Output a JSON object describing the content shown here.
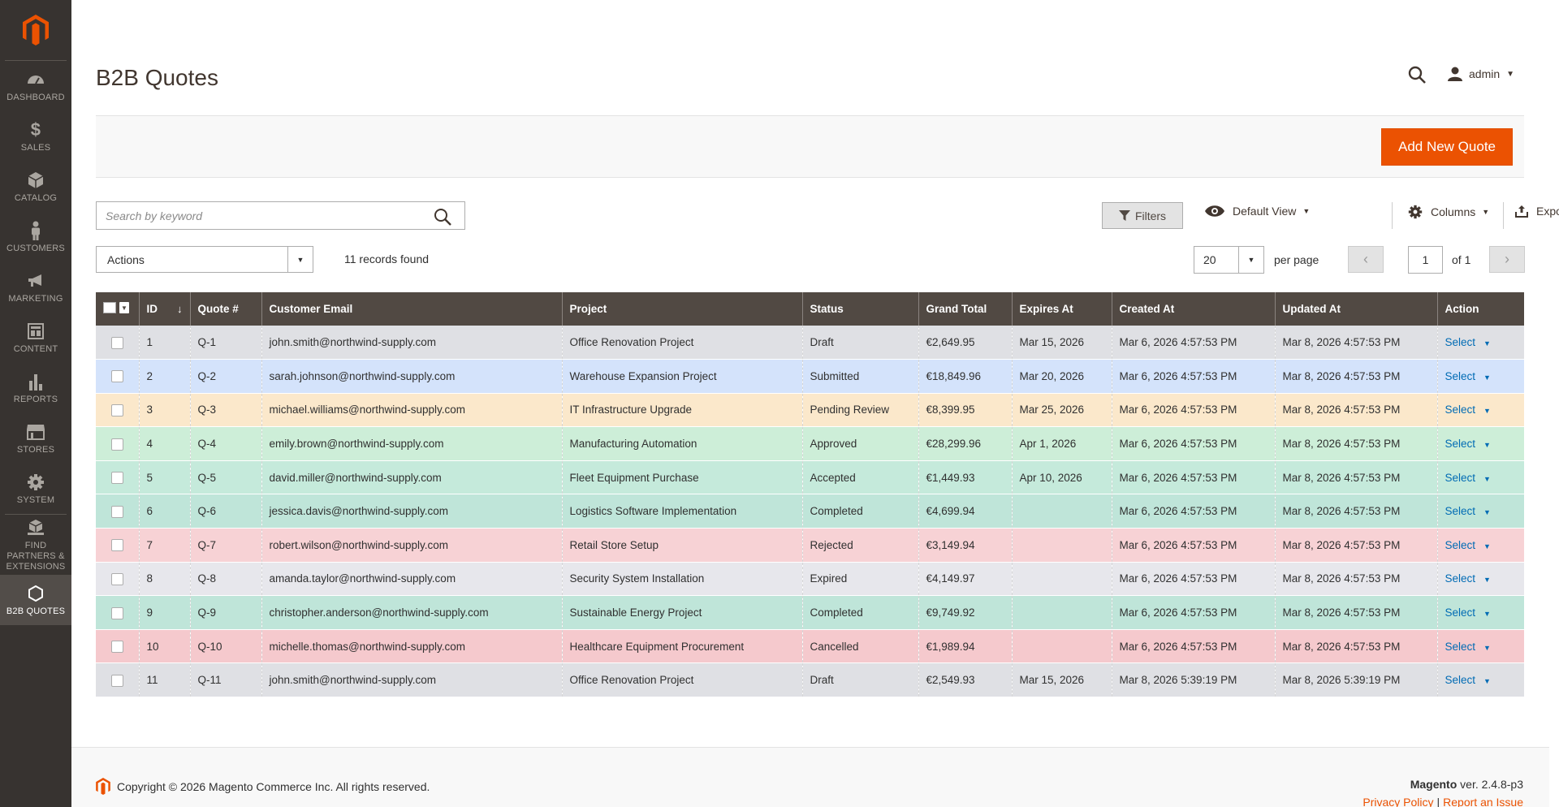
{
  "colors": {
    "sidebar_bg": "#373330",
    "accent": "#eb5202",
    "header_bg": "#514943",
    "link": "#006bb4",
    "status_rows": {
      "Draft": "#dfe0e4",
      "Submitted": "#d4e3fb",
      "Pending Review": "#fbe8cb",
      "Approved": "#cdeed8",
      "Accepted": "#c5eadb",
      "Completed": "#bfe5d9",
      "Rejected": "#f7d2d5",
      "Expired": "#e7e7ec",
      "Cancelled": "#f5c9cd"
    }
  },
  "sidebar": {
    "items": [
      {
        "label": "DASHBOARD",
        "icon": "dashboard-icon"
      },
      {
        "label": "SALES",
        "icon": "dollar-icon"
      },
      {
        "label": "CATALOG",
        "icon": "cube-icon"
      },
      {
        "label": "CUSTOMERS",
        "icon": "person-icon"
      },
      {
        "label": "MARKETING",
        "icon": "megaphone-icon"
      },
      {
        "label": "CONTENT",
        "icon": "layout-icon"
      },
      {
        "label": "REPORTS",
        "icon": "bar-chart-icon"
      },
      {
        "label": "STORES",
        "icon": "storefront-icon"
      },
      {
        "label": "SYSTEM",
        "icon": "gear-icon"
      },
      {
        "label": "FIND PARTNERS & EXTENSIONS",
        "icon": "boxes-icon"
      },
      {
        "label": "B2B QUOTES",
        "icon": "hexagon-icon"
      }
    ]
  },
  "header": {
    "title": "B2B Quotes",
    "user": "admin"
  },
  "toolbar": {
    "add_button": "Add New Quote",
    "search_placeholder": "Search by keyword",
    "filters": "Filters",
    "view": "Default View",
    "columns": "Columns",
    "export": "Export",
    "actions": "Actions",
    "records": "11 records found",
    "per_page_value": "20",
    "per_page_label": "per page",
    "page": "1",
    "of": "of 1"
  },
  "table": {
    "columns": [
      "ID",
      "Quote #",
      "Customer Email",
      "Project",
      "Status",
      "Grand Total",
      "Expires At",
      "Created At",
      "Updated At",
      "Action"
    ],
    "rows": [
      {
        "id": "1",
        "quote": "Q-1",
        "email": "john.smith@northwind-supply.com",
        "project": "Office Renovation Project",
        "status": "Draft",
        "total": "€2,649.95",
        "expires": "Mar 15, 2026",
        "created": "Mar 6, 2026 4:57:53 PM",
        "updated": "Mar 8, 2026 4:57:53 PM",
        "action": "Select"
      },
      {
        "id": "2",
        "quote": "Q-2",
        "email": "sarah.johnson@northwind-supply.com",
        "project": "Warehouse Expansion Project",
        "status": "Submitted",
        "total": "€18,849.96",
        "expires": "Mar 20, 2026",
        "created": "Mar 6, 2026 4:57:53 PM",
        "updated": "Mar 8, 2026 4:57:53 PM",
        "action": "Select"
      },
      {
        "id": "3",
        "quote": "Q-3",
        "email": "michael.williams@northwind-supply.com",
        "project": "IT Infrastructure Upgrade",
        "status": "Pending Review",
        "total": "€8,399.95",
        "expires": "Mar 25, 2026",
        "created": "Mar 6, 2026 4:57:53 PM",
        "updated": "Mar 8, 2026 4:57:53 PM",
        "action": "Select"
      },
      {
        "id": "4",
        "quote": "Q-4",
        "email": "emily.brown@northwind-supply.com",
        "project": "Manufacturing Automation",
        "status": "Approved",
        "total": "€28,299.96",
        "expires": "Apr 1, 2026",
        "created": "Mar 6, 2026 4:57:53 PM",
        "updated": "Mar 8, 2026 4:57:53 PM",
        "action": "Select"
      },
      {
        "id": "5",
        "quote": "Q-5",
        "email": "david.miller@northwind-supply.com",
        "project": "Fleet Equipment Purchase",
        "status": "Accepted",
        "total": "€1,449.93",
        "expires": "Apr 10, 2026",
        "created": "Mar 6, 2026 4:57:53 PM",
        "updated": "Mar 8, 2026 4:57:53 PM",
        "action": "Select"
      },
      {
        "id": "6",
        "quote": "Q-6",
        "email": "jessica.davis@northwind-supply.com",
        "project": "Logistics Software Implementation",
        "status": "Completed",
        "total": "€4,699.94",
        "expires": "",
        "created": "Mar 6, 2026 4:57:53 PM",
        "updated": "Mar 8, 2026 4:57:53 PM",
        "action": "Select"
      },
      {
        "id": "7",
        "quote": "Q-7",
        "email": "robert.wilson@northwind-supply.com",
        "project": "Retail Store Setup",
        "status": "Rejected",
        "total": "€3,149.94",
        "expires": "",
        "created": "Mar 6, 2026 4:57:53 PM",
        "updated": "Mar 8, 2026 4:57:53 PM",
        "action": "Select"
      },
      {
        "id": "8",
        "quote": "Q-8",
        "email": "amanda.taylor@northwind-supply.com",
        "project": "Security System Installation",
        "status": "Expired",
        "total": "€4,149.97",
        "expires": "",
        "created": "Mar 6, 2026 4:57:53 PM",
        "updated": "Mar 8, 2026 4:57:53 PM",
        "action": "Select"
      },
      {
        "id": "9",
        "quote": "Q-9",
        "email": "christopher.anderson@northwind-supply.com",
        "project": "Sustainable Energy Project",
        "status": "Completed",
        "total": "€9,749.92",
        "expires": "",
        "created": "Mar 6, 2026 4:57:53 PM",
        "updated": "Mar 8, 2026 4:57:53 PM",
        "action": "Select"
      },
      {
        "id": "10",
        "quote": "Q-10",
        "email": "michelle.thomas@northwind-supply.com",
        "project": "Healthcare Equipment Procurement",
        "status": "Cancelled",
        "total": "€1,989.94",
        "expires": "",
        "created": "Mar 6, 2026 4:57:53 PM",
        "updated": "Mar 8, 2026 4:57:53 PM",
        "action": "Select"
      },
      {
        "id": "11",
        "quote": "Q-11",
        "email": "john.smith@northwind-supply.com",
        "project": "Office Renovation Project",
        "status": "Draft",
        "total": "€2,549.93",
        "expires": "Mar 15, 2026",
        "created": "Mar 8, 2026 5:39:19 PM",
        "updated": "Mar 8, 2026 5:39:19 PM",
        "action": "Select"
      }
    ]
  },
  "footer": {
    "copyright": "Copyright © 2026 Magento Commerce Inc. All rights reserved.",
    "brand": "Magento",
    "version": " ver. 2.4.8-p3",
    "privacy": "Privacy Policy",
    "sep": "|",
    "report": "Report an Issue"
  }
}
